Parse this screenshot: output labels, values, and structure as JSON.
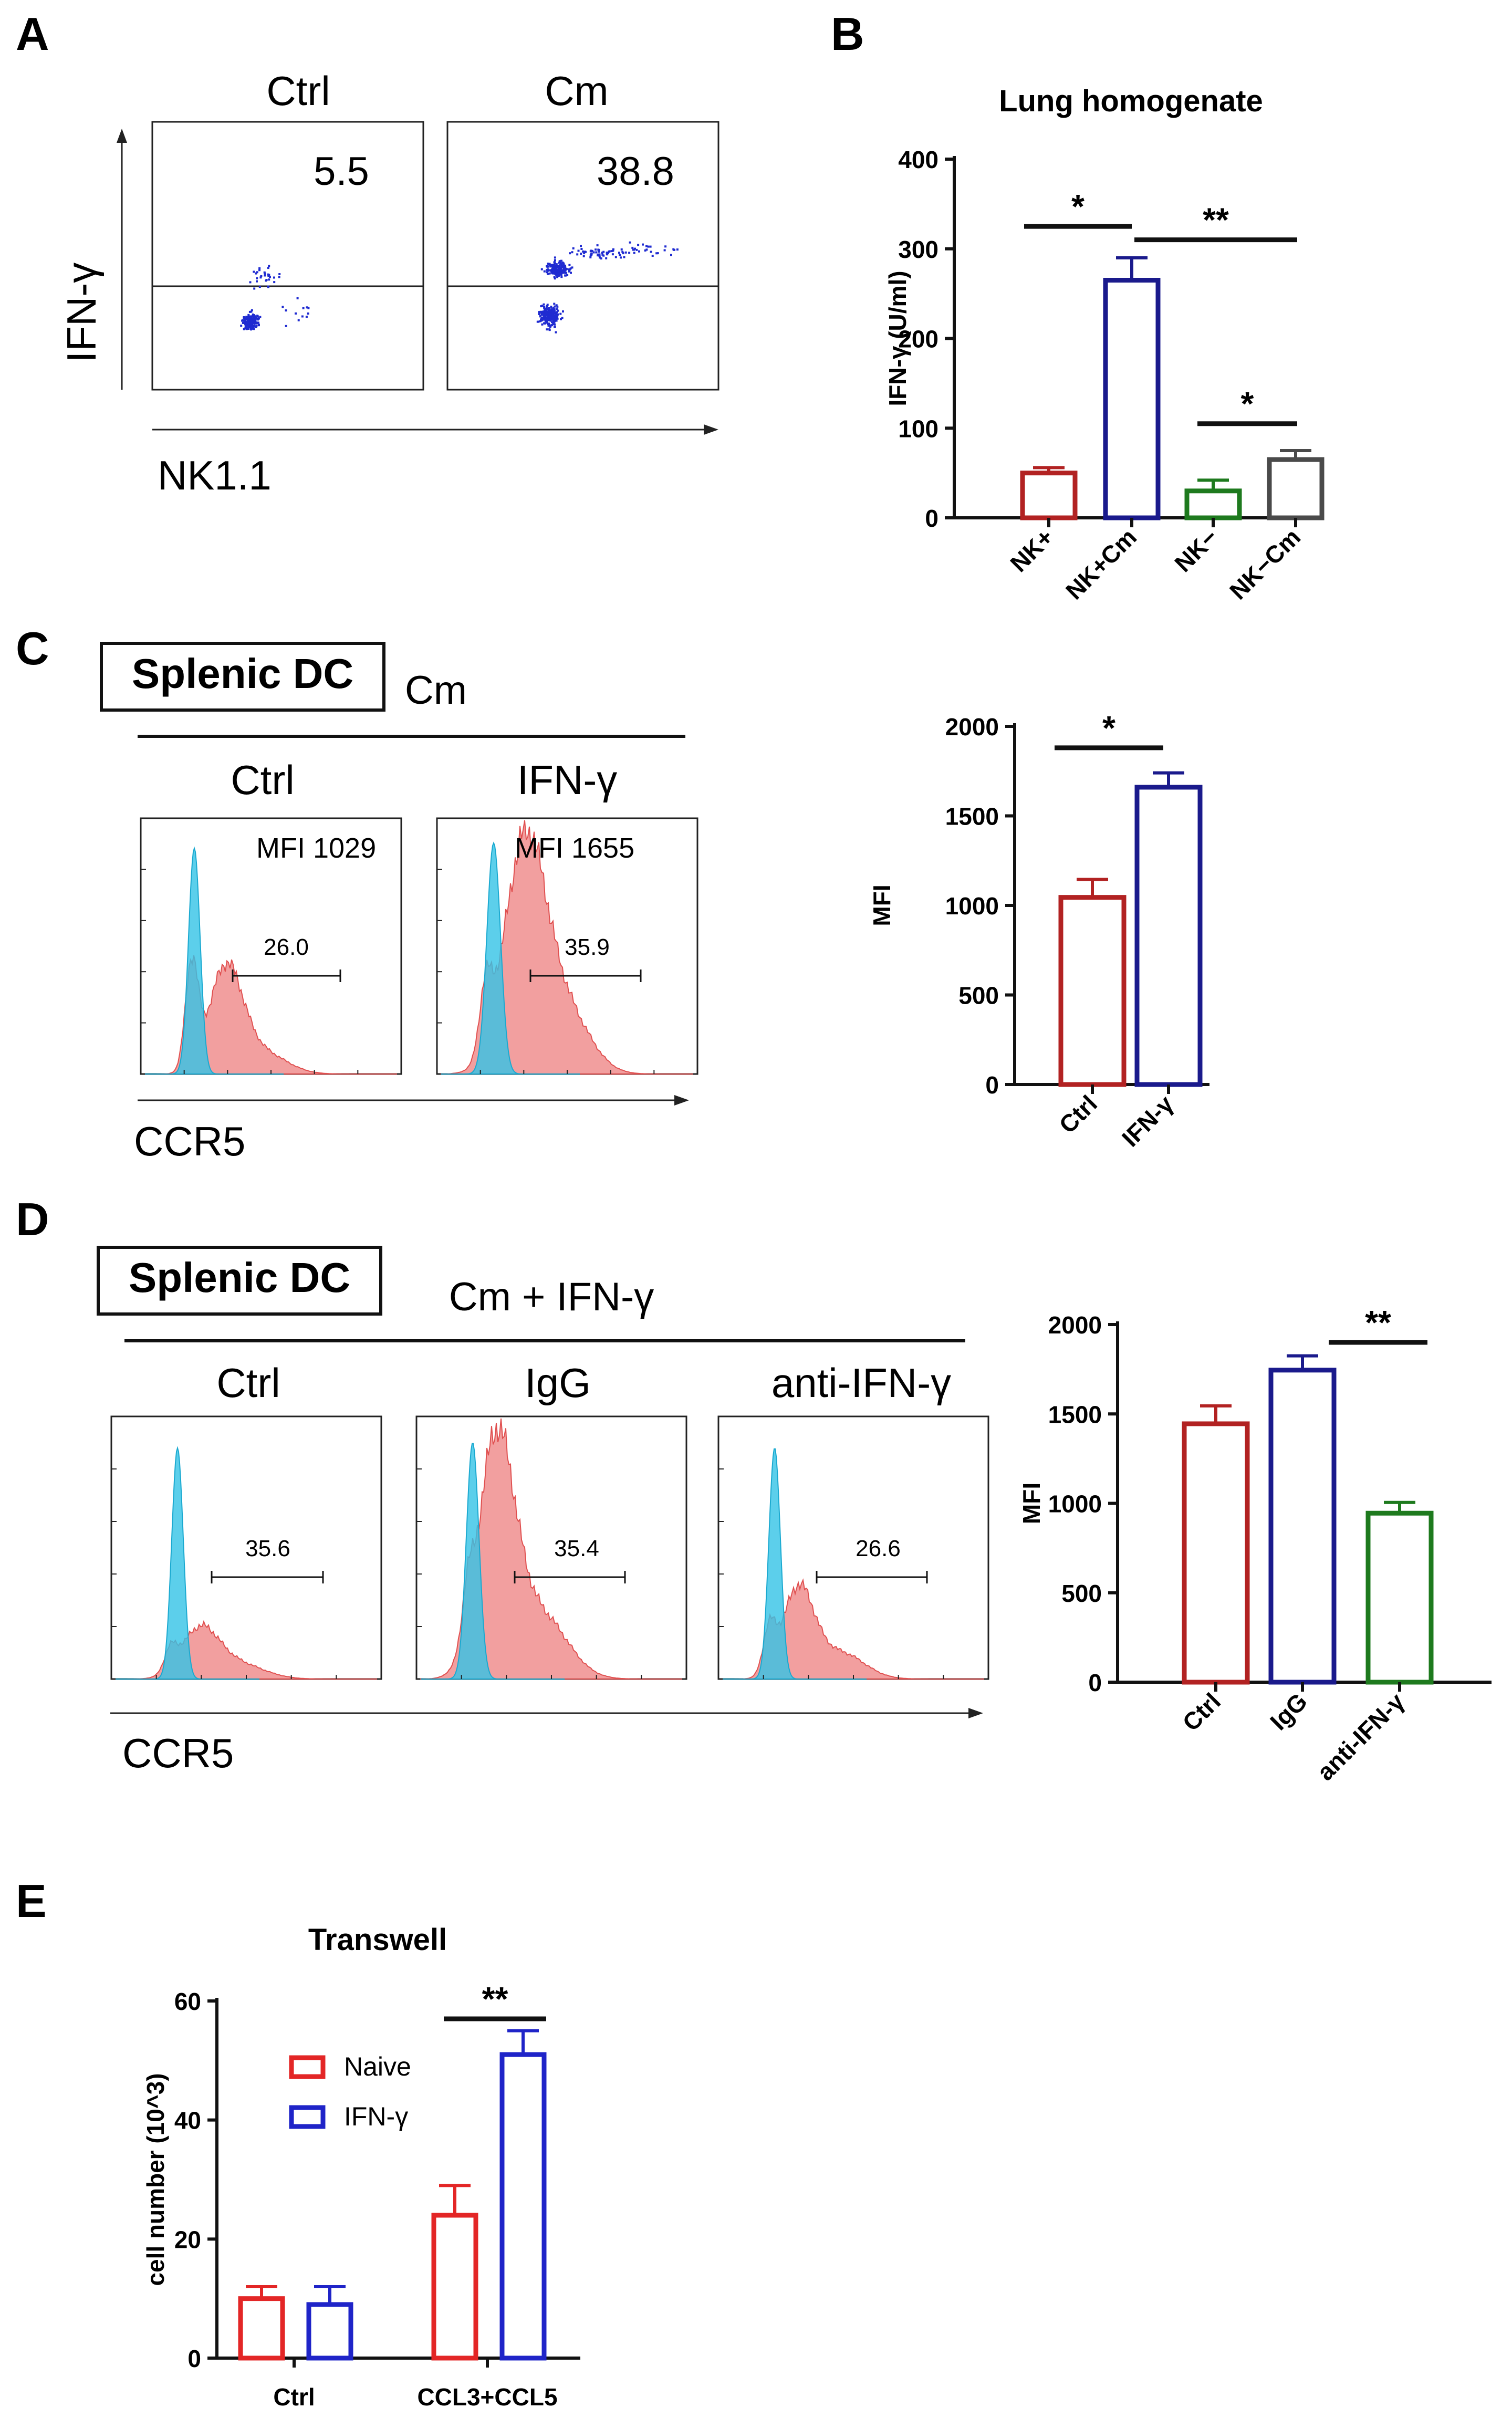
{
  "panels": {
    "A": {
      "label": "A",
      "col1_title": "Ctrl",
      "col2_title": "Cm",
      "col1_value": "5.5",
      "col2_value": "38.8",
      "y_axis": "IFN-γ",
      "x_axis": "NK1.1"
    },
    "B": {
      "label": "B"
    },
    "C": {
      "label": "C",
      "box_label": "Splenic DC",
      "group_label": "Cm",
      "col1_title": "Ctrl",
      "col2_title": "IFN-γ",
      "col1_mfi": "MFI 1029",
      "col2_mfi": "MFI 1655",
      "col1_gate": "26.0",
      "col2_gate": "35.9",
      "x_axis": "CCR5"
    },
    "D": {
      "label": "D",
      "box_label": "Splenic DC",
      "group_label": "Cm + IFN-γ",
      "col1_title": "Ctrl",
      "col2_title": "IgG",
      "col3_title": "anti-IFN-γ",
      "col1_gate": "35.6",
      "col2_gate": "35.4",
      "col3_gate": "26.6",
      "x_axis": "CCR5"
    },
    "E": {
      "label": "E"
    }
  },
  "colors": {
    "red": "#b22222",
    "navy": "#1a1a8c",
    "green": "#1e7a1e",
    "gray": "#4a4a4a",
    "bright_red": "#e32626",
    "bright_blue": "#1f24c8",
    "cyan_fill": "#33c3e6",
    "pink_fill": "#f08e8e",
    "dot_blue": "#1f2bd1"
  },
  "chart_data": [
    {
      "id": "B",
      "type": "bar",
      "title": "Lung homogenate",
      "ylabel": "IFN-γ (U/ml)",
      "xlabel": "",
      "ylim": [
        0,
        400
      ],
      "yticks": [
        0,
        100,
        200,
        300,
        400
      ],
      "categories": [
        "NK+",
        "NK+Cm",
        "NK−",
        "NK−Cm"
      ],
      "values": [
        50,
        265,
        30,
        65
      ],
      "errors": [
        6,
        25,
        12,
        10
      ],
      "bar_colors": [
        "#b22222",
        "#1a1a8c",
        "#1e7a1e",
        "#4a4a4a"
      ],
      "significance": [
        {
          "from": 0,
          "to": 1,
          "label": "*",
          "level": 325
        },
        {
          "from": 1,
          "to": 3,
          "label": "**",
          "level": 310
        },
        {
          "from": 2,
          "to": 3,
          "label": "*",
          "level": 105
        }
      ]
    },
    {
      "id": "C",
      "type": "bar",
      "title": "",
      "ylabel": "MFI",
      "xlabel": "",
      "ylim": [
        0,
        2000
      ],
      "yticks": [
        0,
        500,
        1000,
        1500,
        2000
      ],
      "categories": [
        "Ctrl",
        "IFN-γ"
      ],
      "values": [
        1045,
        1660
      ],
      "errors": [
        100,
        80
      ],
      "bar_colors": [
        "#b22222",
        "#1a1a8c"
      ],
      "significance": [
        {
          "from": 0,
          "to": 1,
          "label": "*",
          "level": 1880
        }
      ]
    },
    {
      "id": "D",
      "type": "bar",
      "title": "",
      "ylabel": "MFI",
      "xlabel": "",
      "ylim": [
        0,
        2000
      ],
      "yticks": [
        0,
        500,
        1000,
        1500,
        2000
      ],
      "categories": [
        "Ctrl",
        "IgG",
        "anti-IFN-γ"
      ],
      "values": [
        1445,
        1745,
        945
      ],
      "errors": [
        100,
        80,
        60
      ],
      "bar_colors": [
        "#b22222",
        "#1a1a8c",
        "#1e7a1e"
      ],
      "significance": [
        {
          "from": 1,
          "to": 2,
          "label": "**",
          "level": 1900
        }
      ]
    },
    {
      "id": "E",
      "type": "bar",
      "title": "Transwell",
      "ylabel": "cell number (10^3)",
      "xlabel": "",
      "ylim": [
        0,
        60
      ],
      "yticks": [
        0,
        20,
        40,
        60
      ],
      "categories": [
        "Ctrl",
        "CCL3+CCL5"
      ],
      "series": [
        {
          "name": "Naive",
          "values": [
            10,
            24
          ],
          "errors": [
            2,
            5
          ],
          "color": "#e32626"
        },
        {
          "name": "IFN-γ",
          "values": [
            9,
            51
          ],
          "errors": [
            3,
            4
          ],
          "color": "#1f24c8"
        }
      ],
      "legend": "top-left",
      "significance": [
        {
          "category": 1,
          "label": "**",
          "level": 57
        }
      ]
    }
  ]
}
